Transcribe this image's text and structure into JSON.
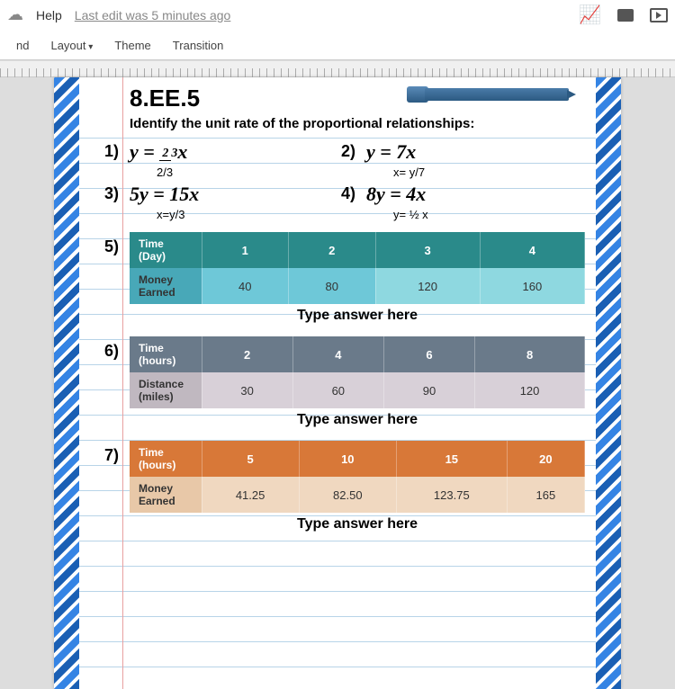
{
  "topbar": {
    "help": "Help",
    "edit_info": "Last edit was 5 minutes ago"
  },
  "toolbar": {
    "nd": "nd",
    "layout": "Layout",
    "theme": "Theme",
    "transition": "Transition"
  },
  "slide": {
    "standard": "8.EE.5",
    "instruction": "Identify the unit rate of the proportional relationships:",
    "eq1": {
      "num": "1)",
      "lhs": "y = ",
      "frac_top": "2",
      "frac_bot": "3",
      "rhs": "x",
      "ans": "2/3"
    },
    "eq2": {
      "num": "2)",
      "main": "y = 7x",
      "ans": "x= y/7"
    },
    "eq3": {
      "num": "3)",
      "main": "5y = 15x",
      "ans": "x=y/3"
    },
    "eq4": {
      "num": "4)",
      "main": "8y = 4x",
      "ans": "y= ½ x"
    },
    "table5": {
      "num": "5)",
      "header_label": "Time (Day)",
      "headers": [
        "1",
        "2",
        "3",
        "4"
      ],
      "row_label": "Money Earned",
      "values": [
        "40",
        "80",
        "120",
        "160"
      ],
      "answer": "Type answer here"
    },
    "table6": {
      "num": "6)",
      "header_label": "Time (hours)",
      "headers": [
        "2",
        "4",
        "6",
        "8"
      ],
      "row_label": "Distance (miles)",
      "values": [
        "30",
        "60",
        "90",
        "120"
      ],
      "answer": "Type answer here"
    },
    "table7": {
      "num": "7)",
      "header_label": "Time (hours)",
      "headers": [
        "5",
        "10",
        "15",
        "20"
      ],
      "row_label": "Money Earned",
      "values": [
        "41.25",
        "82.50",
        "123.75",
        "165"
      ],
      "answer": "Type answer here"
    }
  }
}
